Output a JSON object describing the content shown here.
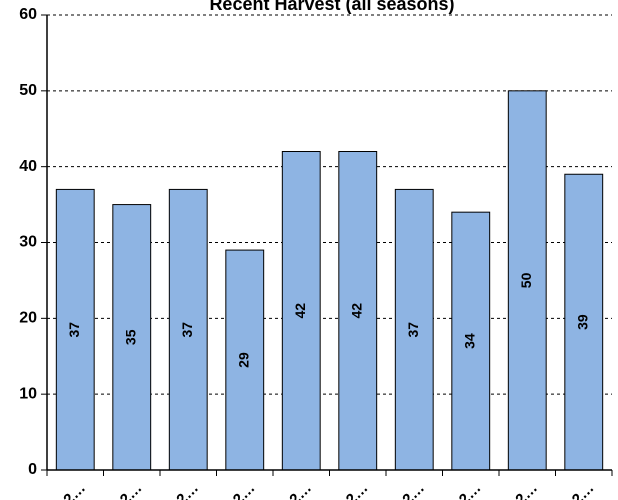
{
  "chart_data": {
    "type": "bar",
    "title": "Recent Harvest (all seasons)",
    "xlabel": "",
    "ylabel": "",
    "categories": [
      "2…",
      "2…",
      "2…",
      "2…",
      "2…",
      "2…",
      "2…",
      "2…",
      "2…",
      "2…"
    ],
    "values": [
      37,
      35,
      37,
      29,
      42,
      42,
      37,
      34,
      50,
      39
    ],
    "ylim": [
      0,
      60
    ],
    "yticks": [
      0,
      10,
      20,
      30,
      40,
      50,
      60
    ],
    "grid": true,
    "bar_color": "#8eb4e3",
    "bar_edge_color": "#000000",
    "legend": "none"
  }
}
